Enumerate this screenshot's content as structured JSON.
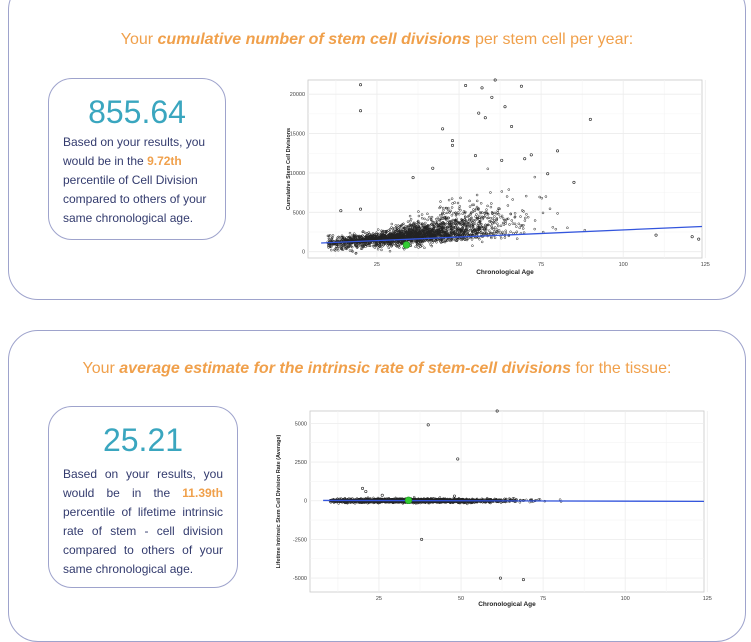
{
  "section1": {
    "heading_prefix": "Your ",
    "heading_emphasis": "cumulative number of stem cell divisions",
    "heading_suffix": " per stem cell per year:",
    "value": "855.64",
    "desc_before": "Based on your results, you would be in the ",
    "percentile": "9.72th",
    "desc_after": " percentile of Cell Division compared to others of your same chronological age."
  },
  "section2": {
    "heading_prefix": "Your ",
    "heading_emphasis": "average estimate for the intrinsic rate of stem-cell divisions",
    "heading_suffix": " for the tissue:",
    "value": "25.21",
    "desc_before": "Based on your results, you would be in the ",
    "percentile": "11.39th",
    "desc_after": " percentile of lifetime intrinsic rate of stem - cell division compared to others of your same chronological age."
  },
  "chart_data": [
    {
      "type": "scatter",
      "title": "",
      "xlabel": "Chronological Age",
      "ylabel": "Cumulative Stem Cell Divisions",
      "xlim": [
        4,
        124
      ],
      "ylim": [
        -800,
        21800
      ],
      "xticks": [
        25,
        50,
        75,
        100,
        125
      ],
      "yticks": [
        0,
        5000,
        10000,
        15000,
        20000
      ],
      "grid": true,
      "colors": {
        "points": "#222222",
        "trend": "#3355dd",
        "marker": "#33cc33"
      },
      "trend": {
        "x": [
          8,
          124
        ],
        "y": [
          1100,
          3200
        ]
      },
      "highlight": {
        "x": 34,
        "y": 855.64
      },
      "outliers": [
        {
          "x": 20,
          "y": 21200
        },
        {
          "x": 20,
          "y": 17900
        },
        {
          "x": 52,
          "y": 21100
        },
        {
          "x": 57,
          "y": 20800
        },
        {
          "x": 61,
          "y": 21800
        },
        {
          "x": 69,
          "y": 21000
        },
        {
          "x": 60,
          "y": 19600
        },
        {
          "x": 64,
          "y": 18400
        },
        {
          "x": 56,
          "y": 17600
        },
        {
          "x": 58,
          "y": 17000
        },
        {
          "x": 66,
          "y": 15900
        },
        {
          "x": 45,
          "y": 15600
        },
        {
          "x": 48,
          "y": 14100
        },
        {
          "x": 48,
          "y": 13500
        },
        {
          "x": 90,
          "y": 16800
        },
        {
          "x": 80,
          "y": 12800
        },
        {
          "x": 72,
          "y": 12300
        },
        {
          "x": 63,
          "y": 11600
        },
        {
          "x": 70,
          "y": 11800
        },
        {
          "x": 42,
          "y": 10600
        },
        {
          "x": 55,
          "y": 12200
        },
        {
          "x": 77,
          "y": 9900
        },
        {
          "x": 85,
          "y": 8800
        },
        {
          "x": 36,
          "y": 9400
        },
        {
          "x": 20,
          "y": 5400
        },
        {
          "x": 14,
          "y": 5200
        },
        {
          "x": 121,
          "y": 1900
        },
        {
          "x": 123,
          "y": 1600
        },
        {
          "x": 110,
          "y": 2100
        }
      ]
    },
    {
      "type": "scatter",
      "title": "",
      "xlabel": "Chronological Age",
      "ylabel": "Lifetime Intrinsic Stem Cell Division Rate (Average)",
      "xlim": [
        4,
        124
      ],
      "ylim": [
        -5900,
        5800
      ],
      "xticks": [
        25,
        50,
        75,
        100,
        125
      ],
      "yticks": [
        -5000,
        -2500,
        0,
        2500,
        5000
      ],
      "grid": true,
      "colors": {
        "points": "#222222",
        "trend": "#3355dd",
        "marker": "#33cc33"
      },
      "trend": {
        "x": [
          8,
          124
        ],
        "y": [
          20,
          -40
        ]
      },
      "highlight": {
        "x": 34,
        "y": 25.21
      },
      "outliers": [
        {
          "x": 40,
          "y": 4900
        },
        {
          "x": 61,
          "y": 5800
        },
        {
          "x": 49,
          "y": 2700
        },
        {
          "x": 20,
          "y": 800
        },
        {
          "x": 21,
          "y": 600
        },
        {
          "x": 38,
          "y": -2500
        },
        {
          "x": 62,
          "y": -5000
        },
        {
          "x": 69,
          "y": -5100
        },
        {
          "x": 48,
          "y": 300
        },
        {
          "x": 26,
          "y": 350
        }
      ]
    }
  ]
}
